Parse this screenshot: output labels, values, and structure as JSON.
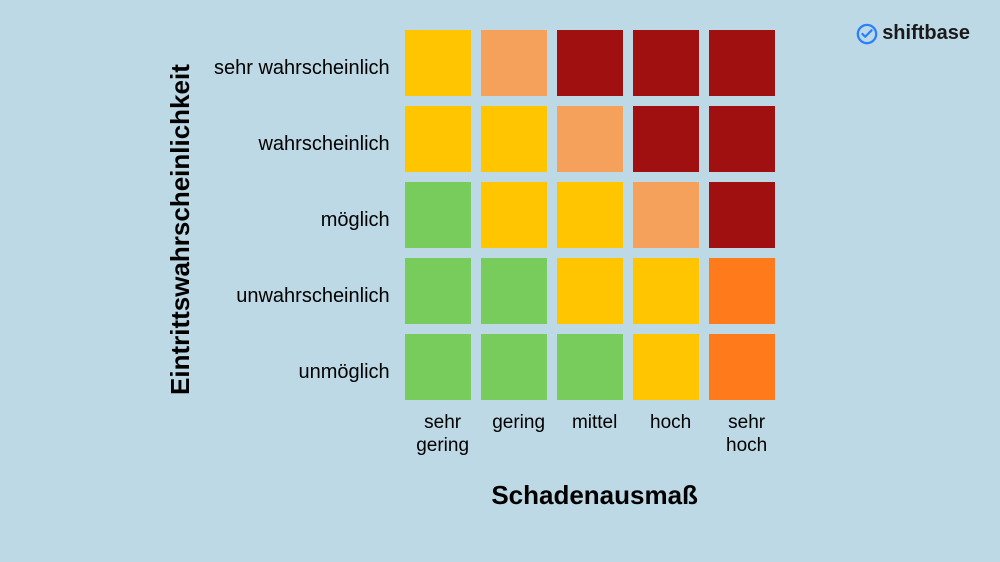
{
  "background_color": "#bdd9e5",
  "logo": {
    "text": "shiftbase",
    "icon_color": "#2a7fff"
  },
  "chart": {
    "type": "heatmap",
    "y_axis_title": "Eintrittswahrscheinlichkeit",
    "x_axis_title": "Schadenausmaß",
    "y_labels": [
      "sehr wahrscheinlich",
      "wahrscheinlich",
      "möglich",
      "unwahrscheinlich",
      "unmöglich"
    ],
    "x_labels": [
      "sehr\ngering",
      "gering",
      "mittel",
      "hoch",
      "sehr\nhoch"
    ],
    "cell_size": 66,
    "cell_gap": 10,
    "colors": {
      "green": "#78cc5c",
      "yellow": "#ffc600",
      "orange_light": "#f6a15b",
      "orange": "#ff7a1a",
      "dark_red": "#a11010"
    },
    "matrix": [
      [
        "yellow",
        "orange_light",
        "dark_red",
        "dark_red",
        "dark_red"
      ],
      [
        "yellow",
        "yellow",
        "orange_light",
        "dark_red",
        "dark_red"
      ],
      [
        "green",
        "yellow",
        "yellow",
        "orange_light",
        "dark_red"
      ],
      [
        "green",
        "green",
        "yellow",
        "yellow",
        "orange"
      ],
      [
        "green",
        "green",
        "green",
        "yellow",
        "orange"
      ]
    ],
    "label_fontsize": 20,
    "axis_title_fontsize": 26,
    "text_color": "#000000"
  }
}
